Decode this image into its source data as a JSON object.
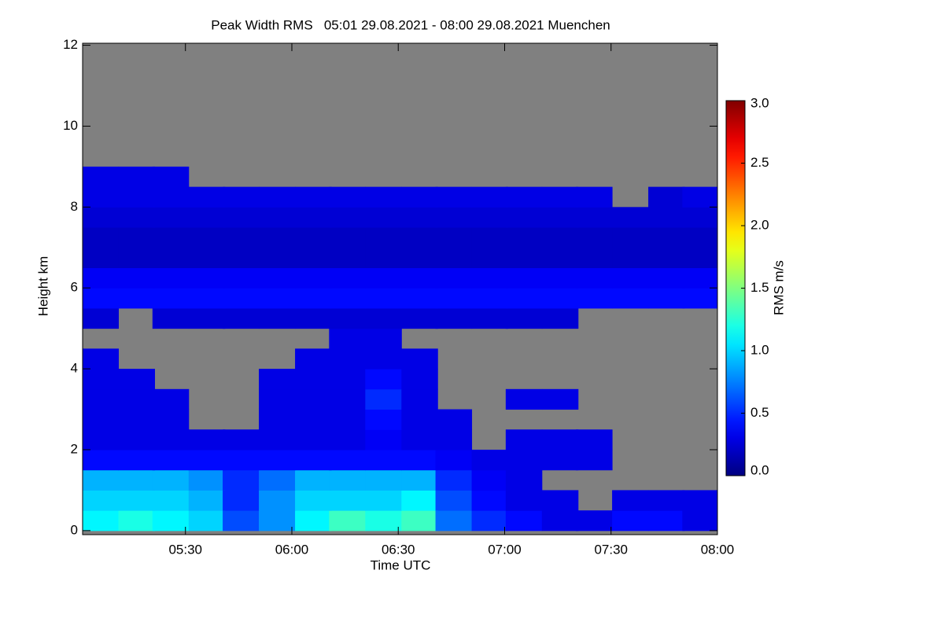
{
  "chart_data": {
    "type": "heatmap",
    "title": "Peak Width RMS   05:01 29.08.2021 - 08:00 29.08.2021 Muenchen",
    "x_label": "Time UTC",
    "y_label": "Height km",
    "colorbar_label": "RMS m/s",
    "colormap": "jet",
    "missing_color": "#808080",
    "xlim": [
      5.0167,
      8.0
    ],
    "xticks": [
      {
        "value": 5.5,
        "label": "05:30"
      },
      {
        "value": 6.0,
        "label": "06:00"
      },
      {
        "value": 6.5,
        "label": "06:30"
      },
      {
        "value": 7.0,
        "label": "07:00"
      },
      {
        "value": 7.5,
        "label": "07:30"
      },
      {
        "value": 8.0,
        "label": "08:00"
      }
    ],
    "ylim": [
      -0.1,
      12.05
    ],
    "yticks": [
      0,
      2,
      4,
      6,
      8,
      10,
      12
    ],
    "zlim": [
      0,
      3
    ],
    "zticks": [
      {
        "value": 0,
        "label": "0.0"
      },
      {
        "value": 0.5,
        "label": "0.5"
      },
      {
        "value": 1,
        "label": "1.0"
      },
      {
        "value": 1.5,
        "label": "1.5"
      },
      {
        "value": 2,
        "label": "2.0"
      },
      {
        "value": 2.5,
        "label": "2.5"
      },
      {
        "value": 3,
        "label": "3.0"
      }
    ],
    "x": [
      5.1,
      5.27,
      5.43,
      5.6,
      5.76,
      5.93,
      6.1,
      6.26,
      6.43,
      6.6,
      6.76,
      6.93,
      7.09,
      7.26,
      7.42,
      7.59,
      7.76,
      7.92
    ],
    "y": [
      0.25,
      0.75,
      1.25,
      1.75,
      2.25,
      2.75,
      3.25,
      3.75,
      4.25,
      4.75,
      5.25,
      5.75,
      6.25,
      6.75,
      7.25,
      7.75,
      8.25,
      8.75
    ],
    "z": [
      [
        1.1,
        1.2,
        1.1,
        1.0,
        0.6,
        0.8,
        1.1,
        1.3,
        1.2,
        1.3,
        0.7,
        0.5,
        0.4,
        0.3,
        0.3,
        0.4,
        0.4,
        0.3
      ],
      [
        1.0,
        1.0,
        1.0,
        0.9,
        0.5,
        0.8,
        1.0,
        1.0,
        1.0,
        1.1,
        0.6,
        0.4,
        0.3,
        0.3,
        null,
        0.3,
        0.3,
        0.3
      ],
      [
        0.9,
        0.9,
        0.9,
        0.8,
        0.5,
        0.7,
        0.9,
        0.9,
        0.9,
        0.9,
        0.5,
        0.35,
        0.3,
        null,
        null,
        null,
        null,
        null
      ],
      [
        0.4,
        0.4,
        0.4,
        0.4,
        0.4,
        0.4,
        0.4,
        0.4,
        0.4,
        0.4,
        0.35,
        0.3,
        0.3,
        0.3,
        0.3,
        null,
        null,
        null
      ],
      [
        0.3,
        0.3,
        0.3,
        0.3,
        0.3,
        0.3,
        0.3,
        0.3,
        0.35,
        0.3,
        0.3,
        null,
        0.3,
        0.3,
        0.3,
        null,
        null,
        null
      ],
      [
        0.3,
        0.3,
        0.3,
        null,
        null,
        0.3,
        0.3,
        0.3,
        0.4,
        0.3,
        0.3,
        null,
        null,
        null,
        null,
        null,
        null,
        null
      ],
      [
        0.3,
        0.3,
        0.3,
        null,
        null,
        0.3,
        0.3,
        0.3,
        0.5,
        0.3,
        null,
        null,
        0.3,
        0.3,
        null,
        null,
        null,
        null
      ],
      [
        0.3,
        0.3,
        null,
        null,
        null,
        0.3,
        0.3,
        0.3,
        0.4,
        0.3,
        null,
        null,
        null,
        null,
        null,
        null,
        null,
        null
      ],
      [
        0.3,
        null,
        null,
        null,
        null,
        null,
        0.3,
        0.3,
        0.3,
        0.3,
        null,
        null,
        null,
        null,
        null,
        null,
        null,
        null
      ],
      [
        null,
        null,
        null,
        null,
        null,
        null,
        null,
        0.3,
        0.3,
        null,
        null,
        null,
        null,
        null,
        null,
        null,
        null,
        null
      ],
      [
        0.25,
        null,
        0.25,
        0.25,
        0.25,
        0.25,
        0.25,
        0.25,
        0.25,
        0.25,
        0.25,
        0.25,
        0.25,
        0.25,
        null,
        null,
        null,
        null
      ],
      [
        0.4,
        0.4,
        0.4,
        0.4,
        0.4,
        0.4,
        0.4,
        0.4,
        0.4,
        0.4,
        0.4,
        0.4,
        0.4,
        0.4,
        0.4,
        0.4,
        0.4,
        0.4
      ],
      [
        0.35,
        0.35,
        0.35,
        0.35,
        0.35,
        0.35,
        0.35,
        0.35,
        0.35,
        0.35,
        0.35,
        0.35,
        0.35,
        0.35,
        0.35,
        0.35,
        0.35,
        0.35
      ],
      [
        0.2,
        0.2,
        0.2,
        0.2,
        0.2,
        0.2,
        0.2,
        0.2,
        0.2,
        0.2,
        0.2,
        0.2,
        0.2,
        0.2,
        0.2,
        0.2,
        0.2,
        0.2
      ],
      [
        0.2,
        0.2,
        0.2,
        0.2,
        0.2,
        0.2,
        0.2,
        0.2,
        0.2,
        0.2,
        0.2,
        0.2,
        0.2,
        0.2,
        0.2,
        0.2,
        0.2,
        0.2
      ],
      [
        0.25,
        0.25,
        0.25,
        0.25,
        0.25,
        0.25,
        0.25,
        0.25,
        0.25,
        0.25,
        0.25,
        0.25,
        0.25,
        0.25,
        0.25,
        0.25,
        0.25,
        0.25
      ],
      [
        0.3,
        0.3,
        0.3,
        0.3,
        0.3,
        0.3,
        0.3,
        0.3,
        0.3,
        0.3,
        0.3,
        0.3,
        0.3,
        0.3,
        0.3,
        null,
        0.25,
        0.3
      ],
      [
        0.3,
        0.3,
        0.3,
        null,
        null,
        null,
        null,
        null,
        null,
        null,
        null,
        null,
        null,
        null,
        null,
        null,
        null,
        null
      ]
    ]
  }
}
